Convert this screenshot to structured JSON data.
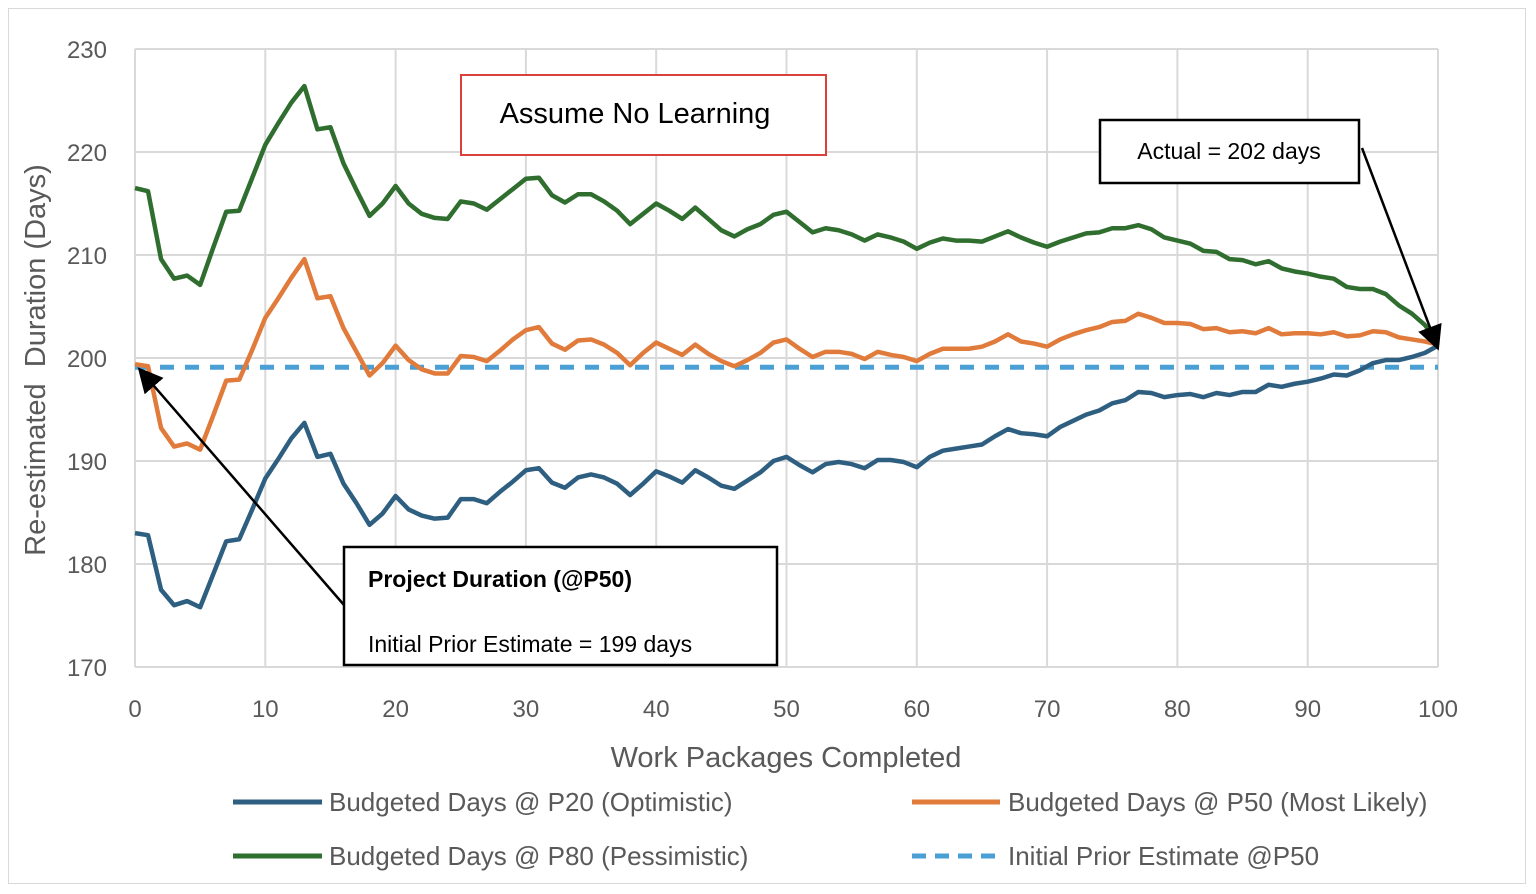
{
  "chart_data": {
    "type": "line",
    "title": "",
    "xlabel": "Work Packages Completed",
    "ylabel": "Re-estimated  Duration (Days)",
    "xlim": [
      0,
      100
    ],
    "ylim": [
      170,
      230
    ],
    "xticks": [
      0,
      10,
      20,
      30,
      40,
      50,
      60,
      70,
      80,
      90,
      100
    ],
    "yticks": [
      170,
      180,
      190,
      200,
      210,
      220,
      230
    ],
    "grid": true,
    "legend_position": "bottom",
    "series": [
      {
        "name": "Budgeted Days @ P20 (Optimistic)",
        "color": "#2e5f80",
        "dash": false,
        "values": [
          183,
          182.8,
          177.5,
          176,
          176.4,
          175.8,
          179,
          182.2,
          182.4,
          185.3,
          188.3,
          190.2,
          192.2,
          193.7,
          190.4,
          190.7,
          187.8,
          185.9,
          183.8,
          184.9,
          186.6,
          185.3,
          184.7,
          184.4,
          184.5,
          186.3,
          186.3,
          185.9,
          187,
          188,
          189.1,
          189.3,
          187.9,
          187.4,
          188.4,
          188.7,
          188.4,
          187.8,
          186.7,
          187.8,
          189,
          188.5,
          187.9,
          189.1,
          188.4,
          187.6,
          187.3,
          188.1,
          188.9,
          190,
          190.4,
          189.6,
          188.9,
          189.7,
          189.9,
          189.7,
          189.3,
          190.1,
          190.1,
          189.9,
          189.4,
          190.4,
          191,
          191.2,
          191.4,
          191.6,
          192.4,
          193.1,
          192.7,
          192.6,
          192.4,
          193.3,
          193.9,
          194.5,
          194.9,
          195.6,
          195.9,
          196.7,
          196.6,
          196.2,
          196.4,
          196.5,
          196.2,
          196.6,
          196.4,
          196.7,
          196.7,
          197.4,
          197.2,
          197.5,
          197.7,
          198,
          198.4,
          198.3,
          198.8,
          199.5,
          199.8,
          199.8,
          200.1,
          200.5,
          201.2
        ]
      },
      {
        "name": "Budgeted Days @ P50 (Most Likely)",
        "color": "#e07b3c",
        "dash": false,
        "values": [
          199.4,
          199.2,
          193.2,
          191.4,
          191.7,
          191.1,
          194.4,
          197.8,
          197.9,
          200.8,
          203.9,
          205.8,
          207.8,
          209.6,
          205.8,
          206,
          202.9,
          200.6,
          198.3,
          199.5,
          201.2,
          199.8,
          198.9,
          198.5,
          198.5,
          200.2,
          200.1,
          199.7,
          200.7,
          201.8,
          202.7,
          203,
          201.4,
          200.8,
          201.7,
          201.8,
          201.3,
          200.5,
          199.3,
          200.5,
          201.5,
          200.9,
          200.3,
          201.3,
          200.4,
          199.7,
          199.2,
          199.8,
          200.5,
          201.5,
          201.8,
          200.9,
          200.1,
          200.6,
          200.6,
          200.4,
          199.9,
          200.6,
          200.3,
          200.1,
          199.7,
          200.4,
          200.9,
          200.9,
          200.9,
          201.1,
          201.6,
          202.3,
          201.6,
          201.4,
          201.1,
          201.8,
          202.3,
          202.7,
          203,
          203.5,
          203.6,
          204.3,
          203.9,
          203.4,
          203.4,
          203.3,
          202.8,
          202.9,
          202.5,
          202.6,
          202.4,
          202.9,
          202.3,
          202.4,
          202.4,
          202.3,
          202.5,
          202.1,
          202.2,
          202.6,
          202.5,
          202,
          201.8,
          201.6,
          201.3
        ]
      },
      {
        "name": "Budgeted Days @ P80 (Pessimistic)",
        "color": "#2f6e2f",
        "dash": false,
        "values": [
          216.5,
          216.2,
          209.6,
          207.7,
          208,
          207.1,
          210.7,
          214.2,
          214.3,
          217.5,
          220.7,
          222.8,
          224.8,
          226.4,
          222.2,
          222.4,
          218.9,
          216.3,
          213.8,
          215,
          216.7,
          215,
          214,
          213.6,
          213.5,
          215.2,
          215,
          214.4,
          215.4,
          216.4,
          217.4,
          217.5,
          215.8,
          215.1,
          215.9,
          215.9,
          215.2,
          214.3,
          213,
          214,
          215,
          214.3,
          213.5,
          214.6,
          213.5,
          212.4,
          211.8,
          212.5,
          213,
          213.9,
          214.2,
          213.2,
          212.2,
          212.6,
          212.4,
          212,
          211.4,
          212,
          211.7,
          211.3,
          210.6,
          211.2,
          211.6,
          211.4,
          211.4,
          211.3,
          211.8,
          212.3,
          211.7,
          211.2,
          210.8,
          211.3,
          211.7,
          212.1,
          212.2,
          212.6,
          212.6,
          212.9,
          212.5,
          211.7,
          211.4,
          211.1,
          210.4,
          210.3,
          209.6,
          209.5,
          209.1,
          209.4,
          208.7,
          208.4,
          208.2,
          207.9,
          207.7,
          206.9,
          206.7,
          206.7,
          206.2,
          205.1,
          204.3,
          203.2,
          201.5
        ]
      },
      {
        "name": "Initial Prior Estimate @P50",
        "color": "#4a9fd5",
        "dash": true,
        "constant": 199.1
      }
    ],
    "annotations": {
      "scenario": "Assume No Learning",
      "actual": "Actual = 202 days",
      "prior_title": "Project Duration (@P50)",
      "prior_text": "Initial Prior Estimate = 199 days"
    },
    "annotation_colors": {
      "scenario_border": "#d9413c"
    }
  }
}
